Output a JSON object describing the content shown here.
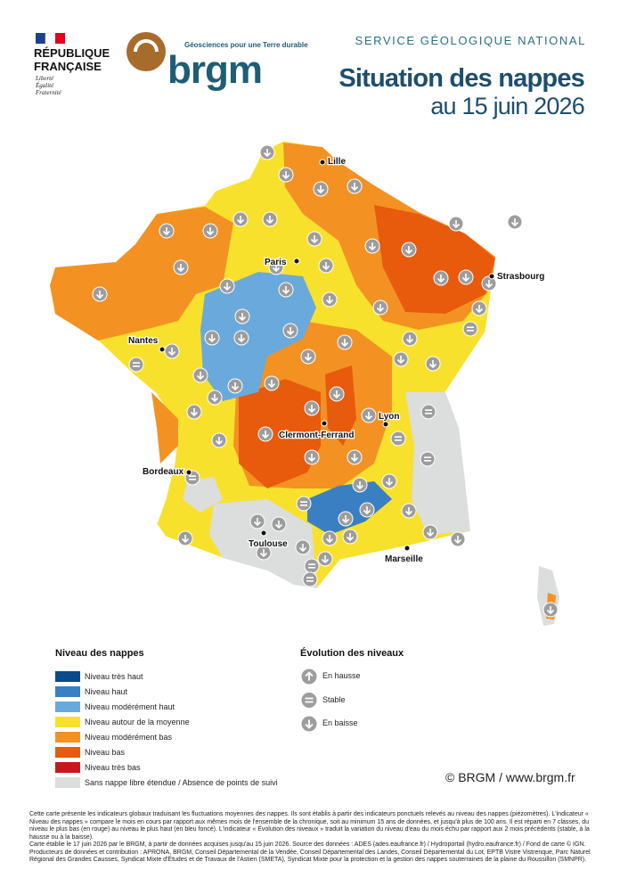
{
  "header": {
    "republic": [
      "RÉPUBLIQUE",
      "FRANÇAISE"
    ],
    "motto": [
      "Liberté",
      "Égalité",
      "Fraternité"
    ],
    "brgm_tagline": "Géosciences pour une Terre durable",
    "brgm_name": "brgm",
    "service": "SERVICE GÉOLOGIQUE NATIONAL",
    "title": "Situation des nappes",
    "subtitle": "au 15 juin 2026"
  },
  "cities": [
    "Lille",
    "Paris",
    "Strasbourg",
    "Nantes",
    "Clermont-Ferrand",
    "Lyon",
    "Bordeaux",
    "Toulouse",
    "Marseille"
  ],
  "legend_levels": {
    "title": "Niveau des nappes",
    "items": [
      {
        "label": "Niveau très haut",
        "color": "#0b4a8b"
      },
      {
        "label": "Niveau haut",
        "color": "#3a7fc2"
      },
      {
        "label": "Niveau modérément haut",
        "color": "#6aa9dc"
      },
      {
        "label": "Niveau autour de la moyenne",
        "color": "#f8e12c"
      },
      {
        "label": "Niveau modérément bas",
        "color": "#f39222"
      },
      {
        "label": "Niveau bas",
        "color": "#e85a0c"
      },
      {
        "label": "Niveau très bas",
        "color": "#c8161d"
      },
      {
        "label": "Sans nappe libre étendue / Absence de points de suivi",
        "color": "#dcdddd"
      }
    ]
  },
  "legend_trend": {
    "title": "Évolution des niveaux",
    "items": [
      "En hausse",
      "Stable",
      "En baisse"
    ]
  },
  "credit": "© BRGM / www.brgm.fr",
  "notes": [
    "Cette carte présente les indicateurs globaux traduisant les fluctuations moyennes des nappes. Ils sont établis à partir des indicateurs ponctuels relevés au niveau des nappes (piézomètres). L'indicateur « Niveau des nappes » compare le mois en cours par rapport aux mêmes mois de l'ensemble de la chronique, soit au minimum 15 ans de données, et jusqu'à plus de 100 ans. Il est réparti en 7 classes, du niveau le plus bas (en rouge) au niveau le plus haut (en bleu foncé). L'indicateur « Évolution des niveaux » traduit la variation du niveau d'eau du mois échu par rapport aux 2 mois précédents (stable, à la hausse ou à la baisse).",
    "Carte établie le 17 juin 2026 par le BRGM, à partir de données acquises jusqu'au 15 juin 2026. Source des données : ADES (ades.eaufrance.fr) / Hydroportail (hydro.eaufrance.fr) / Fond de carte © IGN. Producteurs de données et contribution : APRONA, BRGM, Conseil Départemental de la Vendée, Conseil Départemental des Landes, Conseil Départemental du Lot, EPTB Vistre Vistrenque, Parc Naturel Régional des Grandes Causses, Syndicat Mixte d'Études et de Travaux de l'Astien (SMETA), Syndicat Mixte pour la protection et la gestion des nappes souterraines de la plaine du Roussillon (SMNPR)."
  ]
}
